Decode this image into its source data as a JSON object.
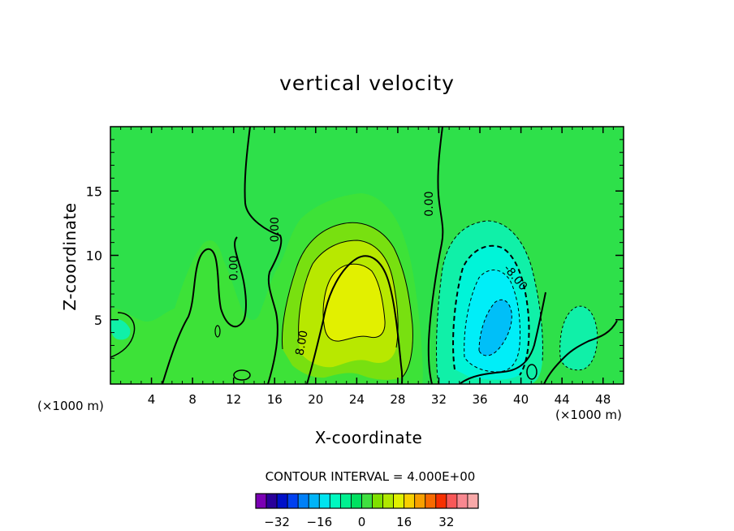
{
  "chart_data": {
    "type": "contour",
    "title": "vertical velocity",
    "xlabel": "X-coordinate",
    "ylabel": "Z-coordinate",
    "x_unit_label": "(×1000 m)",
    "xlim": [
      0,
      50
    ],
    "ylim": [
      0,
      20
    ],
    "x_ticks": [
      4,
      8,
      12,
      16,
      20,
      24,
      28,
      32,
      36,
      40,
      44,
      48
    ],
    "y_ticks": [
      5,
      10,
      15
    ],
    "contour_interval_text": "CONTOUR INTERVAL = 4.000E+00",
    "contour_labels": [
      {
        "text": "0.00",
        "x": 16,
        "z": 12
      },
      {
        "text": "0.00",
        "x": 12,
        "z": 9
      },
      {
        "text": "0.00",
        "x": 31,
        "z": 14
      },
      {
        "text": "8.00",
        "x": 18.6,
        "z": 3.2
      },
      {
        "text": "-8.00",
        "x": 39.5,
        "z": 8.3
      }
    ],
    "updraft": {
      "center_x": 23.5,
      "center_z": 6,
      "max": 14
    },
    "downdraft": {
      "center_x": 38,
      "center_z": 5.5,
      "min": -18
    },
    "colorbar": {
      "levels": [
        -36,
        -32,
        -28,
        -24,
        -20,
        -16,
        -12,
        -8,
        -4,
        0,
        4,
        8,
        12,
        16,
        20,
        24,
        28,
        32,
        36
      ],
      "tick_labels": [
        "-32",
        "-16",
        "0",
        "16",
        "32"
      ],
      "tick_values": [
        -32,
        -16,
        0,
        16,
        32
      ],
      "colors": [
        "#7b00b4",
        "#2a009a",
        "#0010c8",
        "#0040f0",
        "#0080f8",
        "#00b4f8",
        "#00e4f0",
        "#00f8c0",
        "#00f090",
        "#00e060",
        "#40e040",
        "#80e000",
        "#b0e800",
        "#e0f000",
        "#f8d000",
        "#f8a000",
        "#f86a00",
        "#f83000",
        "#f85858",
        "#f88890",
        "#f8a8a8"
      ]
    }
  }
}
